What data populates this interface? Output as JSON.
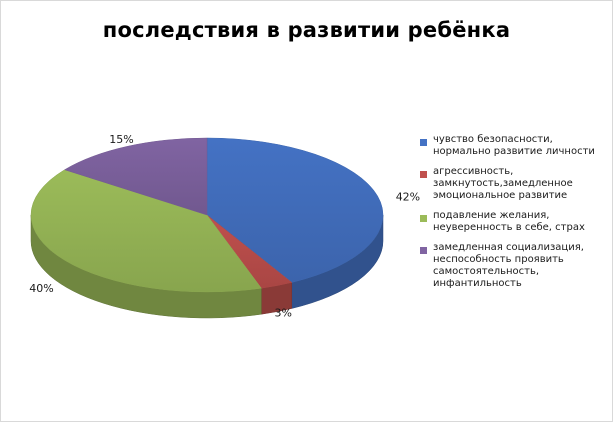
{
  "chart_data": {
    "type": "pie",
    "title": "последствия в развитии ребёнка",
    "slices": [
      {
        "name": "чувство безопасности, нормально развитие личности",
        "value": 42,
        "label": "42%",
        "color": "#4472c4"
      },
      {
        "name": "агрессивность, замкнутость,замедленное эмоциональное развитие",
        "value": 3,
        "label": "3%",
        "color": "#c0504d"
      },
      {
        "name": "подавление желания, неуверенность в себе, страх",
        "value": 40,
        "label": "40%",
        "color": "#9bbb59"
      },
      {
        "name": "замедленная социализация, неспособность проявить самостоятельность, инфантильность",
        "value": 15,
        "label": "15%",
        "color": "#8064a2"
      }
    ],
    "legend_position": "right",
    "style": "3d"
  }
}
